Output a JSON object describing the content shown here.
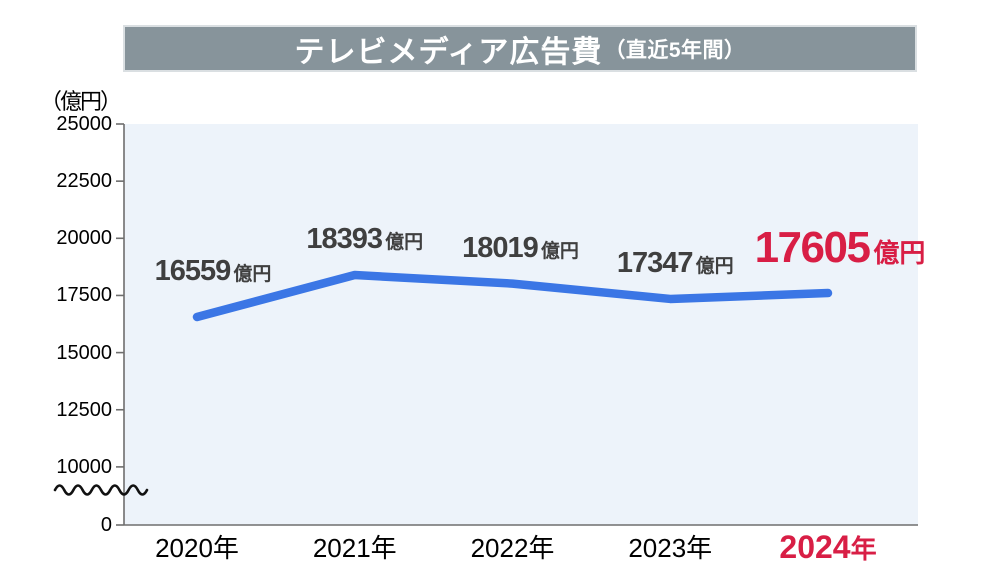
{
  "chart_data": {
    "type": "line",
    "title": "テレビメディア広告費",
    "subtitle": "（直近5年間）",
    "unit_label": "（億円）",
    "categories": [
      "2020年",
      "2021年",
      "2022年",
      "2023年",
      "2024年"
    ],
    "values": [
      16559,
      18393,
      18019,
      17347,
      17605
    ],
    "value_suffix": "億円",
    "yticks": [
      25000,
      22500,
      20000,
      17500,
      15000,
      12500,
      10000,
      0
    ],
    "ylim": [
      0,
      25000
    ],
    "visible_value_range": [
      10000,
      25000
    ],
    "axis_break": true,
    "grid": false,
    "legend_position": "none",
    "highlight_index": 4,
    "colors": {
      "line": "#3B76E5",
      "highlight": "#D81E45",
      "plot_background": "#EDF3FA",
      "banner_background": "#87949B",
      "banner_text": "#FFFFFF",
      "label_text": "#3F3F3F",
      "axis": "#6E6E6E"
    }
  }
}
